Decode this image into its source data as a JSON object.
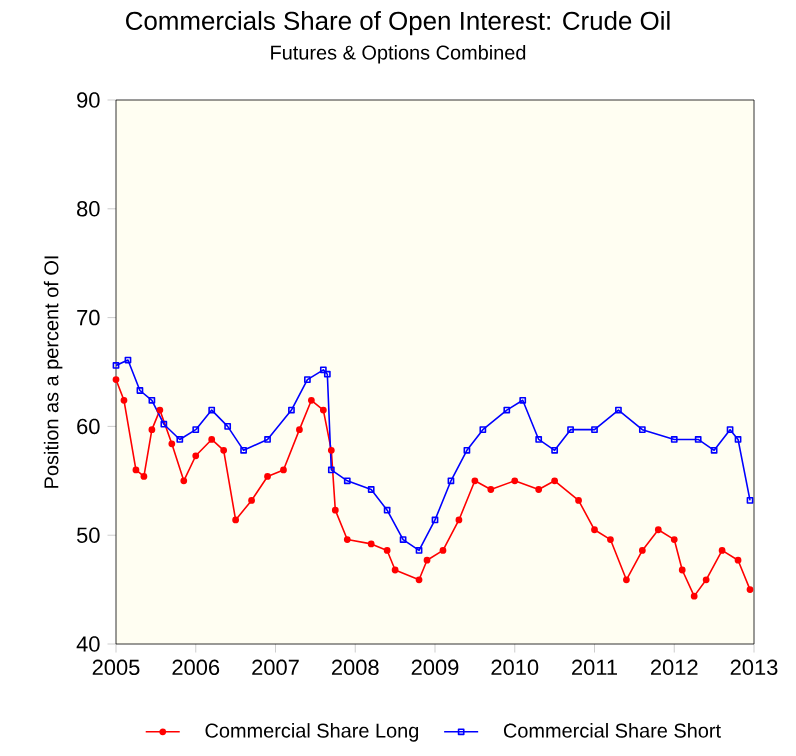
{
  "chart_data": {
    "type": "line",
    "title": "Commercials Share of Open Interest: Crude Oil",
    "subtitle": "Futures & Options Combined",
    "ylabel": "Position as a percent of OI",
    "xlim": [
      2005,
      2013
    ],
    "xticks": [
      2005,
      2006,
      2007,
      2008,
      2009,
      2010,
      2011,
      2012,
      2013
    ],
    "ylim": [
      40,
      90
    ],
    "yticks": [
      40,
      50,
      60,
      70,
      80,
      90
    ],
    "legend": "bottom",
    "series": [
      {
        "name": "Commercial Share Long",
        "color": "#ff0000",
        "marker": "circle",
        "x": [
          2005.0,
          2005.1,
          2005.25,
          2005.35,
          2005.45,
          2005.55,
          2005.7,
          2005.85,
          2006.0,
          2006.2,
          2006.35,
          2006.5,
          2006.7,
          2006.9,
          2007.1,
          2007.3,
          2007.45,
          2007.6,
          2007.7,
          2007.75,
          2007.9,
          2008.2,
          2008.4,
          2008.5,
          2008.8,
          2008.9,
          2009.1,
          2009.3,
          2009.5,
          2009.7,
          2010.0,
          2010.3,
          2010.5,
          2010.8,
          2011.0,
          2011.2,
          2011.4,
          2011.6,
          2011.8,
          2012.0,
          2012.1,
          2012.25,
          2012.4,
          2012.6,
          2012.8,
          2012.95
        ],
        "values": [
          64.3,
          62.4,
          56,
          55.4,
          59.7,
          61.5,
          58.4,
          55,
          57.3,
          58.8,
          57.8,
          51.4,
          53.2,
          55.4,
          56,
          59.7,
          62.4,
          61.5,
          57.8,
          52.3,
          49.6,
          49.2,
          48.6,
          46.8,
          45.9,
          47.7,
          48.6,
          51.4,
          55,
          54.2,
          55,
          54.2,
          55,
          53.2,
          50.5,
          49.6,
          45.9,
          48.6,
          50.5,
          49.6,
          46.8,
          44.4,
          45.9,
          48.6,
          47.7,
          45
        ]
      },
      {
        "name": "Commercial Share Short",
        "color": "#0000ff",
        "marker": "square",
        "x": [
          2005.0,
          2005.15,
          2005.3,
          2005.45,
          2005.6,
          2005.8,
          2006.0,
          2006.2,
          2006.4,
          2006.6,
          2006.9,
          2007.2,
          2007.4,
          2007.6,
          2007.65,
          2007.7,
          2007.9,
          2008.2,
          2008.4,
          2008.6,
          2008.8,
          2009.0,
          2009.2,
          2009.4,
          2009.6,
          2009.9,
          2010.1,
          2010.3,
          2010.5,
          2010.7,
          2011.0,
          2011.3,
          2011.6,
          2012.0,
          2012.3,
          2012.5,
          2012.7,
          2012.8,
          2012.95
        ],
        "values": [
          65.6,
          66.1,
          63.3,
          62.4,
          60.2,
          58.8,
          59.7,
          61.5,
          60,
          57.8,
          58.8,
          61.5,
          64.3,
          65.2,
          64.8,
          56,
          55,
          54.2,
          52.3,
          49.6,
          48.6,
          51.4,
          55,
          57.8,
          59.7,
          61.5,
          62.4,
          58.8,
          57.8,
          59.7,
          59.7,
          61.5,
          59.7,
          58.8,
          58.8,
          57.8,
          59.7,
          58.8,
          53.2
        ]
      }
    ]
  }
}
